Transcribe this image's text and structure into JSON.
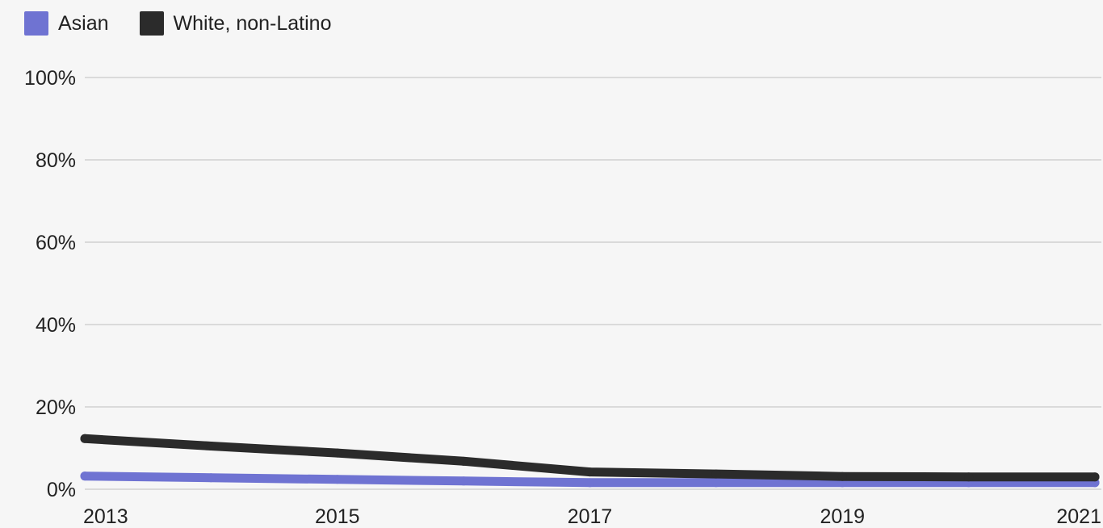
{
  "chart_data": {
    "type": "line",
    "title": "",
    "xlabel": "",
    "ylabel": "",
    "x": [
      2013,
      2014,
      2015,
      2016,
      2017,
      2018,
      2019,
      2020,
      2021
    ],
    "x_ticks": [
      "2013",
      "2015",
      "2017",
      "2019",
      "2021"
    ],
    "x_range": [
      2013,
      2021
    ],
    "ylim": [
      0,
      100
    ],
    "y_ticks": [
      "0%",
      "20%",
      "40%",
      "60%",
      "80%",
      "100%"
    ],
    "y_tick_values": [
      0,
      20,
      40,
      60,
      80,
      100
    ],
    "grid": true,
    "legend_position": "top-left",
    "series": [
      {
        "name": "Asian",
        "color": "#6f73d2",
        "values": [
          3.2,
          2.8,
          2.4,
          2.0,
          1.6,
          1.6,
          1.6,
          1.6,
          1.6
        ]
      },
      {
        "name": "White, non-Latino",
        "color": "#2b2b2b",
        "values": [
          12.3,
          10.5,
          8.8,
          6.8,
          4.2,
          3.7,
          3.1,
          3.0,
          3.0
        ]
      }
    ]
  }
}
